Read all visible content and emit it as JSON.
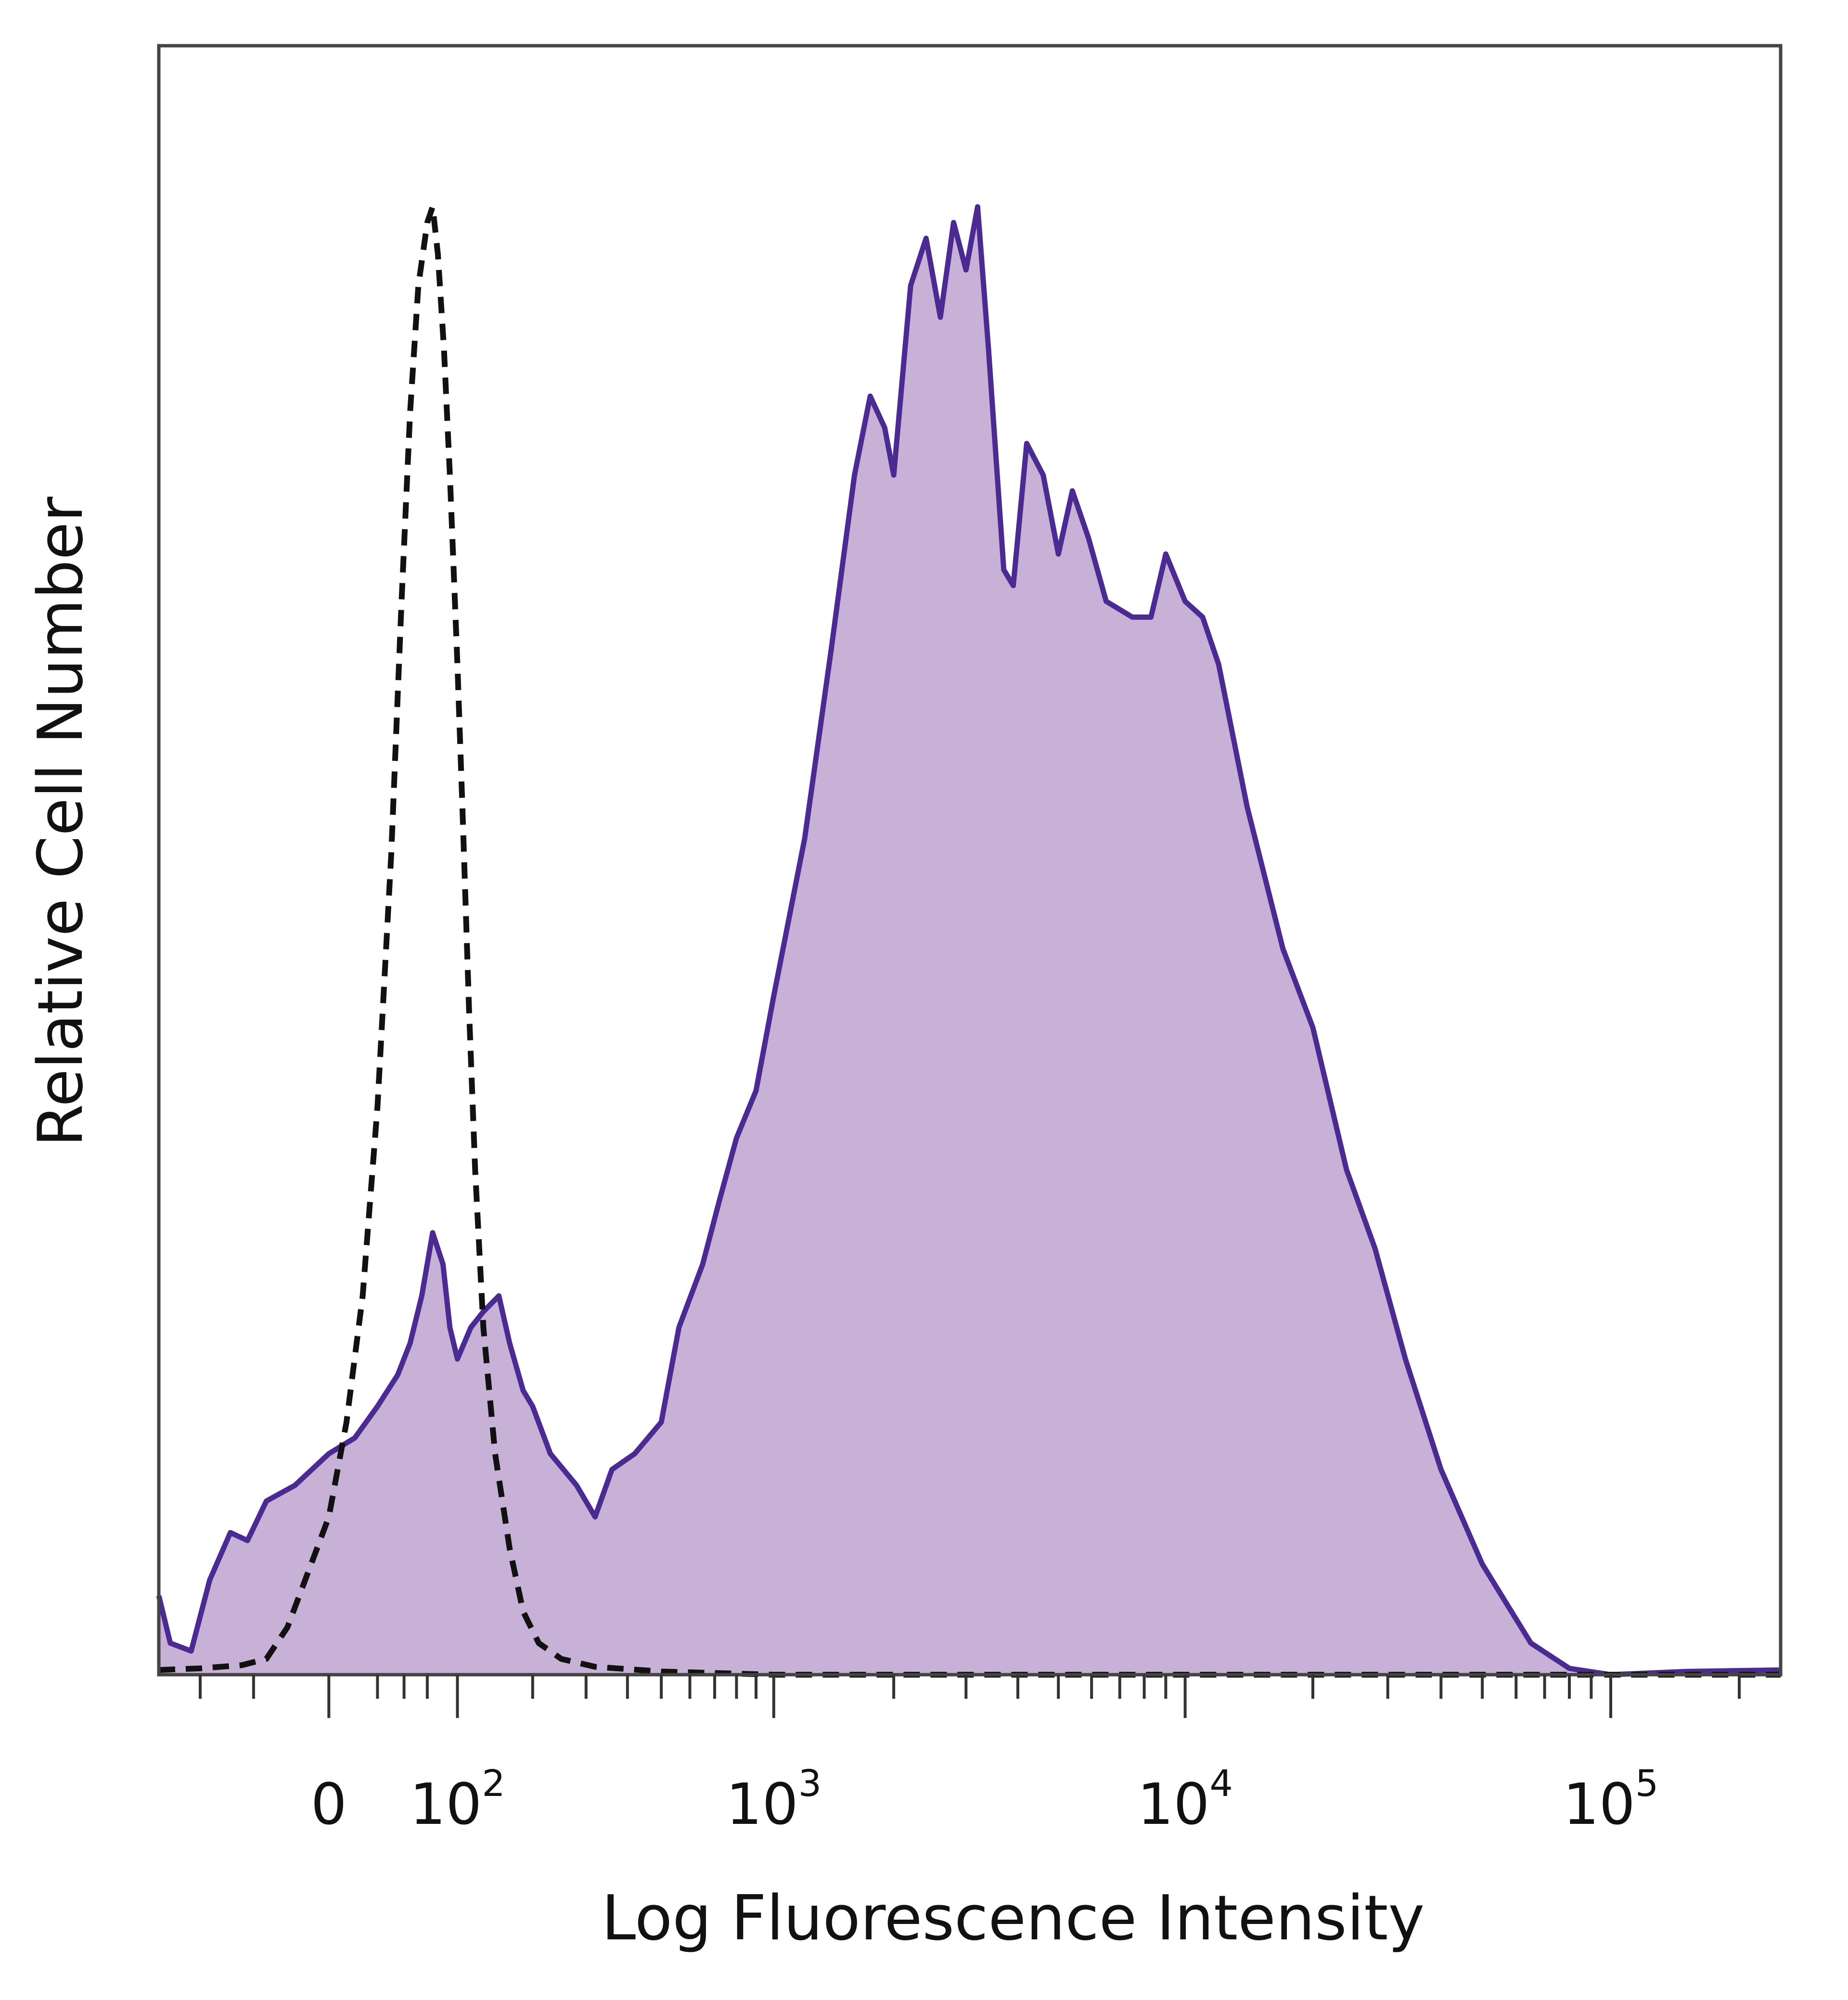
{
  "chart_data": {
    "type": "area",
    "xlabel": "Log Fluorescence Intensity",
    "ylabel": "Relative Cell Number",
    "x_scale": "biexponential",
    "xlim": [
      -150,
      250000
    ],
    "ylim": [
      0,
      100
    ],
    "grid": false,
    "legend": "none",
    "x_ticks": [
      {
        "value": 0,
        "base": "0",
        "exp": ""
      },
      {
        "value": 100,
        "base": "10",
        "exp": "2"
      },
      {
        "value": 1000,
        "base": "10",
        "exp": "3"
      },
      {
        "value": 10000,
        "base": "10",
        "exp": "4"
      },
      {
        "value": 100000,
        "base": "10",
        "exp": "5"
      }
    ],
    "series": [
      {
        "style": "solid-filled",
        "stroke_color": "#4b2a91",
        "fill_color": "#c8b1d6",
        "points": [
          [
            -150,
            5
          ],
          [
            -135,
            2
          ],
          [
            -110,
            1.5
          ],
          [
            -90,
            6
          ],
          [
            -70,
            9
          ],
          [
            -55,
            8.5
          ],
          [
            -40,
            11
          ],
          [
            -20,
            12
          ],
          [
            0,
            14
          ],
          [
            15,
            15
          ],
          [
            30,
            17
          ],
          [
            45,
            19
          ],
          [
            55,
            21
          ],
          [
            65,
            24
          ],
          [
            75,
            28
          ],
          [
            85,
            26
          ],
          [
            92,
            22
          ],
          [
            100,
            20
          ],
          [
            115,
            22
          ],
          [
            130,
            23
          ],
          [
            150,
            24
          ],
          [
            165,
            21
          ],
          [
            185,
            18
          ],
          [
            200,
            17
          ],
          [
            230,
            14
          ],
          [
            280,
            12
          ],
          [
            320,
            10
          ],
          [
            360,
            13
          ],
          [
            420,
            14
          ],
          [
            500,
            16
          ],
          [
            560,
            22
          ],
          [
            650,
            26
          ],
          [
            720,
            30
          ],
          [
            800,
            34
          ],
          [
            900,
            37
          ],
          [
            1000,
            43
          ],
          [
            1200,
            53
          ],
          [
            1400,
            65
          ],
          [
            1600,
            76
          ],
          [
            1750,
            81
          ],
          [
            1900,
            79
          ],
          [
            2000,
            76
          ],
          [
            2200,
            88
          ],
          [
            2400,
            91
          ],
          [
            2600,
            86
          ],
          [
            2800,
            92
          ],
          [
            3000,
            89
          ],
          [
            3200,
            93
          ],
          [
            3400,
            84
          ],
          [
            3700,
            70
          ],
          [
            3900,
            69
          ],
          [
            4200,
            78
          ],
          [
            4600,
            76
          ],
          [
            5000,
            71
          ],
          [
            5400,
            75
          ],
          [
            5900,
            72
          ],
          [
            6500,
            68
          ],
          [
            7500,
            67
          ],
          [
            8300,
            67
          ],
          [
            9000,
            71
          ],
          [
            10000,
            68
          ],
          [
            11000,
            67
          ],
          [
            12000,
            64
          ],
          [
            14000,
            55
          ],
          [
            17000,
            46
          ],
          [
            20000,
            41
          ],
          [
            24000,
            32
          ],
          [
            28000,
            27
          ],
          [
            33000,
            20
          ],
          [
            40000,
            13
          ],
          [
            50000,
            7
          ],
          [
            65000,
            2
          ],
          [
            80000,
            0.4
          ],
          [
            100000,
            0
          ],
          [
            150000,
            0.2
          ],
          [
            250000,
            0.3
          ]
        ]
      },
      {
        "style": "dashed",
        "stroke_color": "#111111",
        "points": [
          [
            -150,
            0.3
          ],
          [
            -100,
            0.4
          ],
          [
            -60,
            0.6
          ],
          [
            -40,
            1
          ],
          [
            -25,
            3
          ],
          [
            -10,
            7
          ],
          [
            0,
            10
          ],
          [
            10,
            16
          ],
          [
            20,
            24
          ],
          [
            30,
            36
          ],
          [
            40,
            52
          ],
          [
            48,
            68
          ],
          [
            55,
            80
          ],
          [
            62,
            88
          ],
          [
            70,
            92
          ],
          [
            75,
            93
          ],
          [
            80,
            90
          ],
          [
            86,
            84
          ],
          [
            92,
            76
          ],
          [
            100,
            64
          ],
          [
            106,
            54
          ],
          [
            113,
            42
          ],
          [
            120,
            32
          ],
          [
            130,
            22
          ],
          [
            145,
            14
          ],
          [
            165,
            8
          ],
          [
            185,
            4
          ],
          [
            210,
            2
          ],
          [
            250,
            1
          ],
          [
            320,
            0.5
          ],
          [
            500,
            0.2
          ],
          [
            1000,
            0
          ],
          [
            100000,
            0
          ],
          [
            250000,
            0
          ]
        ]
      }
    ]
  }
}
